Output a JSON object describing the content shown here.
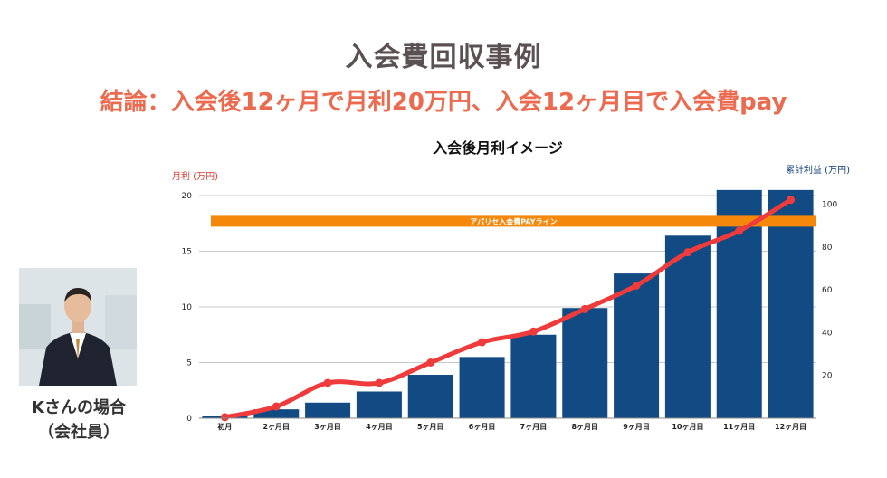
{
  "header": {
    "title": "入会費回収事例",
    "subtitle": "結論：入会後12ヶ月で月利20万円、入会12ヶ月目で入会費pay"
  },
  "profile": {
    "name": "Kさんの場合",
    "role": "（会社員）"
  },
  "colors": {
    "bar": "#124a83",
    "line": "#ef3b3b",
    "payline": "#f5870b",
    "title": "#5b5152",
    "subtitle": "#ec6a4f"
  },
  "chart_data": {
    "type": "bar",
    "title": "入会後月利イメージ",
    "ylabel_left": "月利 (万円)",
    "ylabel_right": "累計利益 (万円)",
    "categories": [
      "初月",
      "2ヶ月目",
      "3ヶ月目",
      "4ヶ月目",
      "5ヶ月目",
      "6ヶ月目",
      "7ヶ月目",
      "8ヶ月目",
      "9ヶ月目",
      "10ヶ月目",
      "11ヶ月目",
      "12ヶ月目"
    ],
    "ylim_left": [
      0,
      20
    ],
    "yticks_left": [
      0,
      5,
      10,
      15,
      20
    ],
    "ylim_right": [
      0,
      104
    ],
    "yticks_right": [
      20,
      40,
      60,
      80,
      100
    ],
    "series": [
      {
        "type": "bar",
        "axis": "left",
        "values": [
          0.2,
          0.8,
          1.4,
          2.4,
          3.9,
          5.5,
          7.5,
          9.9,
          13.0,
          16.4,
          20.5,
          20.5
        ]
      },
      {
        "type": "line",
        "axis": "right",
        "values": [
          0.5,
          5.5,
          16.5,
          16.5,
          26,
          35.5,
          40.5,
          51,
          62,
          77.5,
          87.5,
          102
        ]
      }
    ],
    "annotations": [
      {
        "label": "アパリセ入会費PAYライン",
        "axis": "right",
        "y": 92
      }
    ],
    "grid": true
  }
}
